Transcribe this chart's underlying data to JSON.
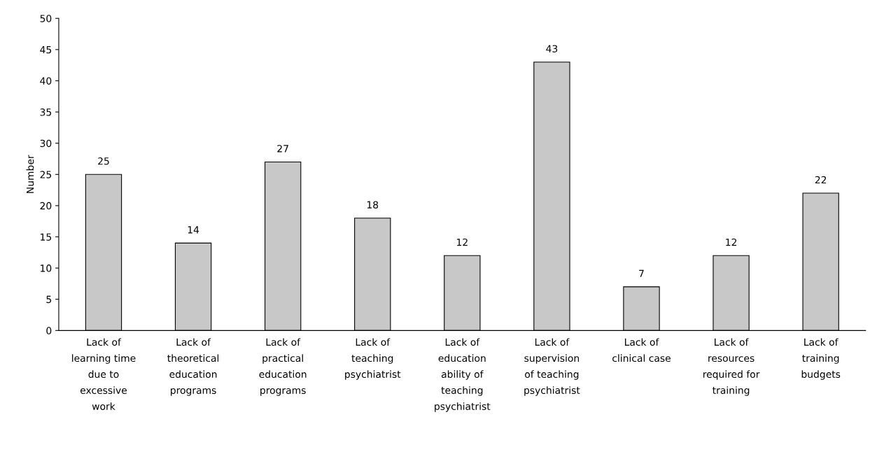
{
  "chart_data": {
    "type": "bar",
    "ylabel": "Number",
    "categories": [
      "Lack of\nlearning time\ndue to\nexcessive\nwork",
      "Lack of\ntheoretical\neducation\nprograms",
      "Lack of\npractical\neducation\nprograms",
      "Lack of\nteaching\npsychiatrist",
      "Lack of\neducation\nability of\nteaching\npsychiatrist",
      "Lack of\nsupervision\nof teaching\npsychiatrist",
      "Lack of\nclinical case",
      "Lack of\nresources\nrequired for\ntraining",
      "Lack of\ntraining\nbudgets"
    ],
    "values": [
      25,
      14,
      27,
      18,
      12,
      43,
      7,
      12,
      22
    ],
    "color": "#c8c8c8",
    "ylim": [
      0,
      50
    ],
    "yticks": [
      0,
      5,
      10,
      15,
      20,
      25,
      30,
      35,
      40,
      45,
      50
    ],
    "data_labels": true,
    "grid": false,
    "legend": false
  }
}
